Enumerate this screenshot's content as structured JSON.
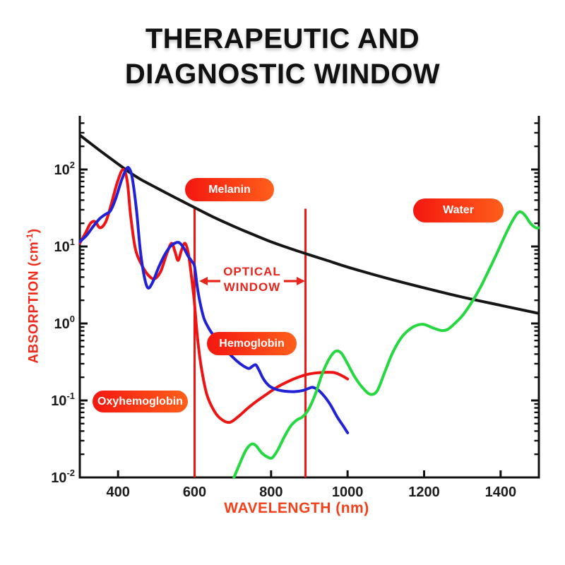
{
  "title": {
    "line1": "THERAPEUTIC AND",
    "line2": "DIAGNOSTIC WINDOW"
  },
  "axes": {
    "y_label_prefix": "ABSORPTION (cm",
    "y_label_superscript": "-1",
    "y_label_suffix": ")",
    "x_label": "WAVELENGTH (nm)",
    "y_tick_base": "10",
    "y_tick_exponents": [
      "2",
      "1",
      "0",
      "-1",
      "-2"
    ],
    "x_tick_labels": [
      "400",
      "600",
      "800",
      "1000",
      "1200",
      "1400"
    ]
  },
  "badges": [
    {
      "id": "melanin",
      "label": "Melanin"
    },
    {
      "id": "water",
      "label": "Water"
    },
    {
      "id": "hemoglobin",
      "label": "Hemoglobin"
    },
    {
      "id": "oxyhemoglobin",
      "label": "Oxyhemoglobin"
    }
  ],
  "optical_window": {
    "line1": "OPTICAL",
    "line2": "WINDOW",
    "from_nm": 600,
    "to_nm": 890
  },
  "colors": {
    "melanin_curve": "#161616",
    "oxyhemoglobin_curve": "#ee1414",
    "hemoglobin_curve": "#2121d6",
    "water_curve": "#25d840",
    "window_line": "#ee1414",
    "axis": "#111111",
    "tick_label": "#1c1c1c",
    "badge_gradient_left": "#f41710",
    "badge_gradient_right": "#ff5f1b",
    "red_text": "#e8251d"
  },
  "chart_data": {
    "type": "line",
    "title": "THERAPEUTIC AND DIAGNOSTIC WINDOW",
    "xlabel": "WAVELENGTH (nm)",
    "ylabel": "ABSORPTION (cm-1)",
    "x_range_nm": [
      300,
      1500
    ],
    "y_range": [
      0.01,
      500
    ],
    "y_scale": "log",
    "grid": false,
    "x_ticks": [
      400,
      600,
      800,
      1000,
      1200,
      1400
    ],
    "y_ticks": [
      100,
      10,
      1,
      0.1,
      0.01
    ],
    "vertical_lines": [
      {
        "x_nm": 600,
        "from": 0.01,
        "to": 31
      },
      {
        "x_nm": 890,
        "from": 0.01,
        "to": 31
      }
    ],
    "series": [
      {
        "name": "Melanin",
        "color": "#161616",
        "points": [
          [
            300,
            280
          ],
          [
            350,
            180
          ],
          [
            400,
            118
          ],
          [
            430,
            92
          ],
          [
            460,
            74
          ],
          [
            500,
            58
          ],
          [
            550,
            43
          ],
          [
            600,
            32
          ],
          [
            650,
            24
          ],
          [
            700,
            18.5
          ],
          [
            750,
            14.5
          ],
          [
            800,
            11.5
          ],
          [
            850,
            9.4
          ],
          [
            900,
            7.8
          ],
          [
            950,
            6.5
          ],
          [
            1000,
            5.4
          ],
          [
            1100,
            3.9
          ],
          [
            1200,
            2.9
          ],
          [
            1300,
            2.2
          ],
          [
            1400,
            1.72
          ],
          [
            1500,
            1.35
          ]
        ]
      },
      {
        "name": "Oxyhemoglobin",
        "color": "#ee1414",
        "points": [
          [
            300,
            11
          ],
          [
            315,
            15
          ],
          [
            328,
            20
          ],
          [
            340,
            21
          ],
          [
            353,
            17.5
          ],
          [
            368,
            21
          ],
          [
            382,
            35
          ],
          [
            398,
            68
          ],
          [
            413,
            100
          ],
          [
            424,
            70
          ],
          [
            433,
            25
          ],
          [
            445,
            9.5
          ],
          [
            460,
            6
          ],
          [
            478,
            4.3
          ],
          [
            495,
            3.8
          ],
          [
            512,
            4.8
          ],
          [
            527,
            8
          ],
          [
            540,
            11
          ],
          [
            549,
            8.5
          ],
          [
            557,
            6.6
          ],
          [
            566,
            9
          ],
          [
            575,
            11
          ],
          [
            584,
            8
          ],
          [
            592,
            4
          ],
          [
            599,
            2
          ],
          [
            607,
            0.7
          ],
          [
            617,
            0.28
          ],
          [
            632,
            0.12
          ],
          [
            652,
            0.072
          ],
          [
            672,
            0.056
          ],
          [
            692,
            0.052
          ],
          [
            715,
            0.062
          ],
          [
            740,
            0.08
          ],
          [
            765,
            0.1
          ],
          [
            790,
            0.122
          ],
          [
            815,
            0.148
          ],
          [
            840,
            0.172
          ],
          [
            865,
            0.195
          ],
          [
            890,
            0.215
          ],
          [
            915,
            0.227
          ],
          [
            940,
            0.232
          ],
          [
            965,
            0.23
          ],
          [
            985,
            0.21
          ],
          [
            1000,
            0.19
          ]
        ]
      },
      {
        "name": "Hemoglobin",
        "color": "#2121d6",
        "points": [
          [
            300,
            11.5
          ],
          [
            318,
            14
          ],
          [
            336,
            18.5
          ],
          [
            352,
            23
          ],
          [
            366,
            26
          ],
          [
            380,
            29
          ],
          [
            394,
            42
          ],
          [
            408,
            70
          ],
          [
            420,
            98
          ],
          [
            428,
            105
          ],
          [
            437,
            78
          ],
          [
            448,
            30
          ],
          [
            458,
            9
          ],
          [
            468,
            4.2
          ],
          [
            478,
            2.9
          ],
          [
            490,
            3.4
          ],
          [
            505,
            5.2
          ],
          [
            520,
            7.5
          ],
          [
            535,
            9.8
          ],
          [
            548,
            11
          ],
          [
            560,
            11.2
          ],
          [
            572,
            9.5
          ],
          [
            583,
            7.5
          ],
          [
            593,
            6.4
          ],
          [
            600,
            5.5
          ],
          [
            607,
            3
          ],
          [
            614,
            1.9
          ],
          [
            625,
            1.15
          ],
          [
            640,
            0.82
          ],
          [
            658,
            0.62
          ],
          [
            676,
            0.48
          ],
          [
            694,
            0.39
          ],
          [
            712,
            0.32
          ],
          [
            728,
            0.28
          ],
          [
            742,
            0.26
          ],
          [
            752,
            0.28
          ],
          [
            760,
            0.29
          ],
          [
            768,
            0.25
          ],
          [
            780,
            0.19
          ],
          [
            795,
            0.155
          ],
          [
            812,
            0.14
          ],
          [
            835,
            0.132
          ],
          [
            860,
            0.13
          ],
          [
            882,
            0.134
          ],
          [
            896,
            0.142
          ],
          [
            908,
            0.148
          ],
          [
            922,
            0.138
          ],
          [
            938,
            0.115
          ],
          [
            955,
            0.088
          ],
          [
            972,
            0.062
          ],
          [
            988,
            0.047
          ],
          [
            1000,
            0.038
          ]
        ]
      },
      {
        "name": "Water",
        "color": "#25d840",
        "points": [
          [
            703,
            0.01
          ],
          [
            718,
            0.015
          ],
          [
            733,
            0.022
          ],
          [
            748,
            0.027
          ],
          [
            760,
            0.026
          ],
          [
            775,
            0.021
          ],
          [
            790,
            0.0185
          ],
          [
            803,
            0.018
          ],
          [
            818,
            0.023
          ],
          [
            835,
            0.034
          ],
          [
            852,
            0.047
          ],
          [
            868,
            0.056
          ],
          [
            880,
            0.06
          ],
          [
            893,
            0.07
          ],
          [
            905,
            0.09
          ],
          [
            918,
            0.13
          ],
          [
            932,
            0.21
          ],
          [
            948,
            0.32
          ],
          [
            962,
            0.41
          ],
          [
            972,
            0.44
          ],
          [
            984,
            0.41
          ],
          [
            1000,
            0.3
          ],
          [
            1018,
            0.205
          ],
          [
            1040,
            0.145
          ],
          [
            1060,
            0.12
          ],
          [
            1078,
            0.135
          ],
          [
            1098,
            0.24
          ],
          [
            1118,
            0.42
          ],
          [
            1140,
            0.65
          ],
          [
            1162,
            0.84
          ],
          [
            1182,
            0.95
          ],
          [
            1200,
            0.97
          ],
          [
            1222,
            0.88
          ],
          [
            1245,
            0.81
          ],
          [
            1262,
            0.84
          ],
          [
            1282,
            1.02
          ],
          [
            1302,
            1.3
          ],
          [
            1325,
            1.9
          ],
          [
            1348,
            3.0
          ],
          [
            1370,
            5.0
          ],
          [
            1392,
            8.5
          ],
          [
            1412,
            14
          ],
          [
            1432,
            22
          ],
          [
            1448,
            28
          ],
          [
            1462,
            26
          ],
          [
            1478,
            20
          ],
          [
            1492,
            17.5
          ],
          [
            1500,
            17.5
          ]
        ]
      }
    ]
  }
}
